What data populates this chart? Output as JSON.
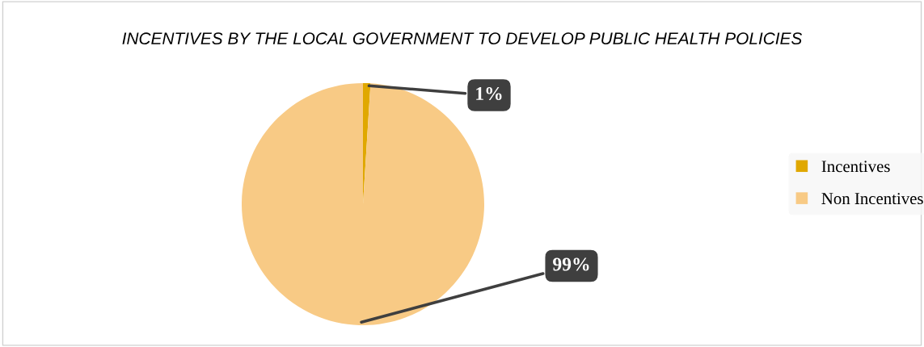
{
  "chart_data": {
    "type": "pie",
    "title": "INCENTIVES BY THE LOCAL GOVERNMENT TO DEVELOP PUBLIC HEALTH POLICIES",
    "categories": [
      "Incentives",
      "Non Incentives"
    ],
    "values": [
      1,
      99
    ],
    "colors": [
      "#e0a800",
      "#f8ca85"
    ],
    "value_labels": [
      "1%",
      "99%"
    ],
    "legend": "right"
  }
}
